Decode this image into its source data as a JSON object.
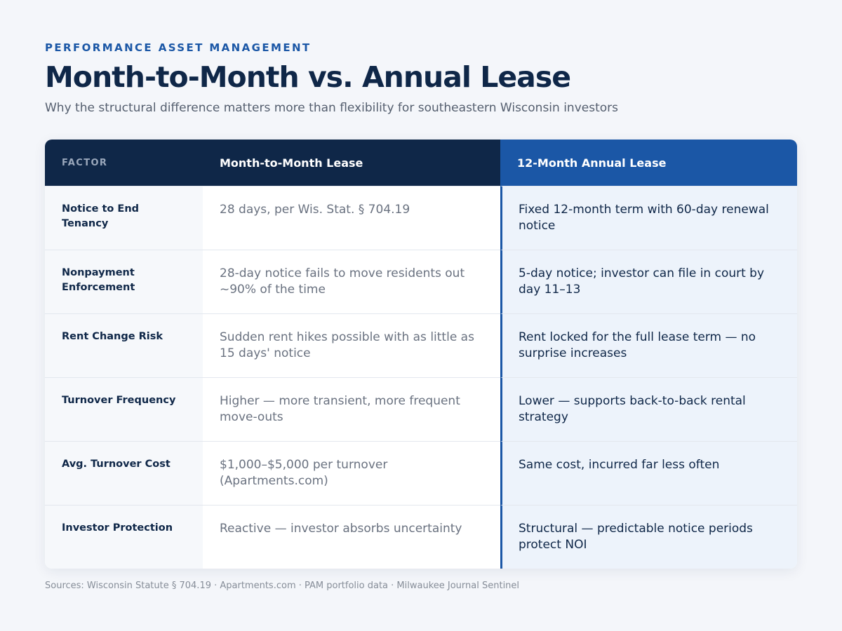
{
  "header": {
    "eyebrow": "PERFORMANCE ASSET MANAGEMENT",
    "title": "Month-to-Month vs. Annual Lease",
    "subtitle": "Why the structural difference matters more than flexibility for southeastern Wisconsin investors"
  },
  "table": {
    "columns": [
      "FACTOR",
      "Month-to-Month Lease",
      "12-Month Annual Lease"
    ],
    "rows": [
      {
        "factor": "Notice to End Tenancy",
        "month_to_month": "28 days, per Wis. Stat. § 704.19",
        "annual": "Fixed 12-month term with 60-day renewal notice"
      },
      {
        "factor": "Nonpayment Enforcement",
        "month_to_month": "28-day notice fails to move residents out ~90% of the time",
        "annual": "5-day notice; investor can file in court by day 11–13"
      },
      {
        "factor": "Rent Change Risk",
        "month_to_month": "Sudden rent hikes possible with as little as 15 days' notice",
        "annual": "Rent locked for the full lease term — no surprise increases"
      },
      {
        "factor": "Turnover Frequency",
        "month_to_month": "Higher — more transient, more frequent move-outs",
        "annual": "Lower — supports back-to-back rental strategy"
      },
      {
        "factor": "Avg. Turnover Cost",
        "month_to_month": "$1,000–$5,000 per turnover (Apartments.com)",
        "annual": "Same cost, incurred far less often"
      },
      {
        "factor": "Investor Protection",
        "month_to_month": "Reactive — investor absorbs uncertainty",
        "annual": "Structural — predictable notice periods protect NOI"
      }
    ]
  },
  "footer": {
    "sources": "Sources: Wisconsin Statute § 704.19 · Apartments.com · PAM portfolio data · Milwaukee Journal Sentinel"
  },
  "colors": {
    "navy": "#0f2748",
    "accent_blue": "#1b57a6",
    "annual_column_bg": "#edf3fb",
    "page_bg": "#f4f6fa"
  }
}
